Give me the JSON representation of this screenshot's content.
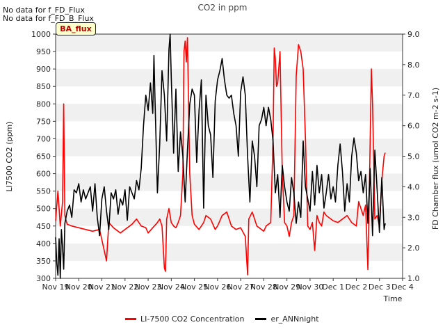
{
  "chart_data": {
    "type": "line",
    "title": "CO2 in ppm",
    "xlabel": "Time",
    "ylabel_left": "LI7500 CO2 (ppm)",
    "ylabel_right": "FD Chamber flux (umol CO2 m-2 s-1)",
    "ylim_left": [
      300,
      1000
    ],
    "ylim_right": [
      1.0,
      9.0
    ],
    "xlim_days": [
      0,
      15
    ],
    "x_tick_labels": [
      "Nov 19",
      "Nov 20",
      "Nov 21",
      "Nov 22",
      "Nov 23",
      "Nov 24",
      "Nov 25",
      "Nov 26",
      "Nov 27",
      "Nov 28",
      "Nov 29",
      "Nov 30",
      "Dec 1",
      "Dec 2",
      "Dec 3",
      "Dec 4"
    ],
    "y_left_ticks": [
      300,
      350,
      400,
      450,
      500,
      550,
      600,
      650,
      700,
      750,
      800,
      850,
      900,
      950,
      1000
    ],
    "y_right_ticks": [
      "1.0",
      "2.0",
      "3.0",
      "4.0",
      "5.0",
      "6.0",
      "7.0",
      "8.0",
      "9.0"
    ],
    "grid": "horizontal bands",
    "legend_position": "bottom",
    "series": [
      {
        "name": "LI-7500 CO2 Concentration",
        "axis": "left",
        "color": "#ff0000",
        "points": [
          [
            0.0,
            465
          ],
          [
            0.1,
            550
          ],
          [
            0.2,
            450
          ],
          [
            0.3,
            520
          ],
          [
            0.35,
            800
          ],
          [
            0.4,
            480
          ],
          [
            0.5,
            455
          ],
          [
            0.7,
            450
          ],
          [
            1.0,
            445
          ],
          [
            1.3,
            440
          ],
          [
            1.6,
            435
          ],
          [
            1.9,
            440
          ],
          [
            2.1,
            380
          ],
          [
            2.2,
            350
          ],
          [
            2.3,
            460
          ],
          [
            2.5,
            445
          ],
          [
            2.8,
            430
          ],
          [
            3.0,
            440
          ],
          [
            3.3,
            455
          ],
          [
            3.5,
            470
          ],
          [
            3.7,
            450
          ],
          [
            3.9,
            445
          ],
          [
            4.0,
            430
          ],
          [
            4.2,
            445
          ],
          [
            4.4,
            460
          ],
          [
            4.5,
            470
          ],
          [
            4.6,
            450
          ],
          [
            4.7,
            330
          ],
          [
            4.75,
            320
          ],
          [
            4.8,
            470
          ],
          [
            4.9,
            500
          ],
          [
            5.0,
            460
          ],
          [
            5.1,
            450
          ],
          [
            5.2,
            445
          ],
          [
            5.3,
            460
          ],
          [
            5.4,
            480
          ],
          [
            5.5,
            600
          ],
          [
            5.55,
            950
          ],
          [
            5.6,
            980
          ],
          [
            5.65,
            920
          ],
          [
            5.7,
            990
          ],
          [
            5.8,
            600
          ],
          [
            5.9,
            480
          ],
          [
            6.0,
            455
          ],
          [
            6.2,
            440
          ],
          [
            6.4,
            460
          ],
          [
            6.5,
            480
          ],
          [
            6.7,
            470
          ],
          [
            6.9,
            440
          ],
          [
            7.0,
            450
          ],
          [
            7.2,
            480
          ],
          [
            7.4,
            490
          ],
          [
            7.6,
            450
          ],
          [
            7.8,
            440
          ],
          [
            8.0,
            445
          ],
          [
            8.2,
            420
          ],
          [
            8.3,
            310
          ],
          [
            8.35,
            470
          ],
          [
            8.5,
            490
          ],
          [
            8.7,
            450
          ],
          [
            8.9,
            440
          ],
          [
            9.0,
            435
          ],
          [
            9.1,
            450
          ],
          [
            9.3,
            460
          ],
          [
            9.4,
            700
          ],
          [
            9.45,
            960
          ],
          [
            9.5,
            930
          ],
          [
            9.55,
            850
          ],
          [
            9.6,
            860
          ],
          [
            9.7,
            950
          ],
          [
            9.8,
            600
          ],
          [
            9.9,
            460
          ],
          [
            10.0,
            450
          ],
          [
            10.1,
            420
          ],
          [
            10.2,
            460
          ],
          [
            10.3,
            480
          ],
          [
            10.4,
            880
          ],
          [
            10.5,
            970
          ],
          [
            10.55,
            960
          ],
          [
            10.6,
            950
          ],
          [
            10.7,
            900
          ],
          [
            10.8,
            700
          ],
          [
            10.9,
            450
          ],
          [
            11.0,
            440
          ],
          [
            11.1,
            460
          ],
          [
            11.2,
            380
          ],
          [
            11.3,
            480
          ],
          [
            11.4,
            460
          ],
          [
            11.5,
            450
          ],
          [
            11.6,
            490
          ],
          [
            11.7,
            480
          ],
          [
            11.9,
            470
          ],
          [
            12.0,
            465
          ],
          [
            12.2,
            460
          ],
          [
            12.4,
            470
          ],
          [
            12.6,
            480
          ],
          [
            12.8,
            460
          ],
          [
            13.0,
            450
          ],
          [
            13.1,
            520
          ],
          [
            13.2,
            500
          ],
          [
            13.3,
            480
          ],
          [
            13.4,
            510
          ],
          [
            13.5,
            325
          ],
          [
            13.55,
            500
          ],
          [
            13.6,
            700
          ],
          [
            13.65,
            900
          ],
          [
            13.7,
            800
          ],
          [
            13.8,
            470
          ],
          [
            13.9,
            480
          ],
          [
            14.0,
            450
          ],
          [
            14.1,
            580
          ],
          [
            14.2,
            650
          ],
          [
            14.25,
            660
          ]
        ]
      },
      {
        "name": "er_ANNnight",
        "axis": "right",
        "color": "#000000",
        "points": [
          [
            0.0,
            2.35
          ],
          [
            0.05,
            1.5
          ],
          [
            0.1,
            1.1
          ],
          [
            0.15,
            2.3
          ],
          [
            0.2,
            1.0
          ],
          [
            0.25,
            2.6
          ],
          [
            0.3,
            2.0
          ],
          [
            0.35,
            1.3
          ],
          [
            0.4,
            2.8
          ],
          [
            0.5,
            3.2
          ],
          [
            0.6,
            3.4
          ],
          [
            0.7,
            3.0
          ],
          [
            0.8,
            3.9
          ],
          [
            0.9,
            3.8
          ],
          [
            1.0,
            4.1
          ],
          [
            1.1,
            3.5
          ],
          [
            1.2,
            3.9
          ],
          [
            1.3,
            3.6
          ],
          [
            1.4,
            3.8
          ],
          [
            1.5,
            4.0
          ],
          [
            1.6,
            3.2
          ],
          [
            1.7,
            4.1
          ],
          [
            1.8,
            3.0
          ],
          [
            1.9,
            2.4
          ],
          [
            2.0,
            3.6
          ],
          [
            2.1,
            4.0
          ],
          [
            2.2,
            3.2
          ],
          [
            2.3,
            2.6
          ],
          [
            2.4,
            3.8
          ],
          [
            2.5,
            3.6
          ],
          [
            2.6,
            3.9
          ],
          [
            2.7,
            3.1
          ],
          [
            2.8,
            3.6
          ],
          [
            2.9,
            3.4
          ],
          [
            3.0,
            3.9
          ],
          [
            3.1,
            2.9
          ],
          [
            3.2,
            4.0
          ],
          [
            3.3,
            3.8
          ],
          [
            3.4,
            3.6
          ],
          [
            3.5,
            4.2
          ],
          [
            3.6,
            3.9
          ],
          [
            3.7,
            4.6
          ],
          [
            3.8,
            6.0
          ],
          [
            3.9,
            7.0
          ],
          [
            4.0,
            6.5
          ],
          [
            4.1,
            7.4
          ],
          [
            4.2,
            6.4
          ],
          [
            4.25,
            8.3
          ],
          [
            4.3,
            6.8
          ],
          [
            4.4,
            3.8
          ],
          [
            4.5,
            5.4
          ],
          [
            4.6,
            7.8
          ],
          [
            4.7,
            7.0
          ],
          [
            4.8,
            5.5
          ],
          [
            4.9,
            8.5
          ],
          [
            4.95,
            9.0
          ],
          [
            5.0,
            7.6
          ],
          [
            5.1,
            5.1
          ],
          [
            5.2,
            7.2
          ],
          [
            5.3,
            4.5
          ],
          [
            5.4,
            5.8
          ],
          [
            5.5,
            5.0
          ],
          [
            5.6,
            3.5
          ],
          [
            5.7,
            5.2
          ],
          [
            5.8,
            6.7
          ],
          [
            5.9,
            7.2
          ],
          [
            6.0,
            7.0
          ],
          [
            6.1,
            4.8
          ],
          [
            6.2,
            6.5
          ],
          [
            6.3,
            7.5
          ],
          [
            6.4,
            3.3
          ],
          [
            6.5,
            7.0
          ],
          [
            6.6,
            6.0
          ],
          [
            6.7,
            5.7
          ],
          [
            6.8,
            4.3
          ],
          [
            6.9,
            6.8
          ],
          [
            7.0,
            7.5
          ],
          [
            7.1,
            7.8
          ],
          [
            7.2,
            8.2
          ],
          [
            7.3,
            7.5
          ],
          [
            7.4,
            7.0
          ],
          [
            7.5,
            6.9
          ],
          [
            7.6,
            7.0
          ],
          [
            7.7,
            6.4
          ],
          [
            7.8,
            6.0
          ],
          [
            7.9,
            5.0
          ],
          [
            8.0,
            7.1
          ],
          [
            8.1,
            7.6
          ],
          [
            8.2,
            7.0
          ],
          [
            8.3,
            5.0
          ],
          [
            8.4,
            3.5
          ],
          [
            8.5,
            5.5
          ],
          [
            8.6,
            5.0
          ],
          [
            8.7,
            4.0
          ],
          [
            8.8,
            6.0
          ],
          [
            8.9,
            6.2
          ],
          [
            9.0,
            6.6
          ],
          [
            9.1,
            6.0
          ],
          [
            9.2,
            6.6
          ],
          [
            9.3,
            6.2
          ],
          [
            9.4,
            5.5
          ],
          [
            9.5,
            3.8
          ],
          [
            9.6,
            4.4
          ],
          [
            9.7,
            3.0
          ],
          [
            9.8,
            4.7
          ],
          [
            9.9,
            4.0
          ],
          [
            10.0,
            3.5
          ],
          [
            10.1,
            3.2
          ],
          [
            10.2,
            4.3
          ],
          [
            10.3,
            3.8
          ],
          [
            10.4,
            2.8
          ],
          [
            10.5,
            3.5
          ],
          [
            10.6,
            3.0
          ],
          [
            10.7,
            5.5
          ],
          [
            10.8,
            4.0
          ],
          [
            10.9,
            3.6
          ],
          [
            11.0,
            3.2
          ],
          [
            11.1,
            4.5
          ],
          [
            11.2,
            3.4
          ],
          [
            11.3,
            4.7
          ],
          [
            11.4,
            3.8
          ],
          [
            11.5,
            4.4
          ],
          [
            11.6,
            3.3
          ],
          [
            11.7,
            3.8
          ],
          [
            11.8,
            4.4
          ],
          [
            11.9,
            3.6
          ],
          [
            12.0,
            4.0
          ],
          [
            12.1,
            3.5
          ],
          [
            12.2,
            4.7
          ],
          [
            12.3,
            5.4
          ],
          [
            12.4,
            4.5
          ],
          [
            12.5,
            3.2
          ],
          [
            12.6,
            4.1
          ],
          [
            12.7,
            3.5
          ],
          [
            12.8,
            5.0
          ],
          [
            12.9,
            5.6
          ],
          [
            13.0,
            5.1
          ],
          [
            13.1,
            4.2
          ],
          [
            13.2,
            4.5
          ],
          [
            13.3,
            3.8
          ],
          [
            13.4,
            4.4
          ],
          [
            13.5,
            2.8
          ],
          [
            13.6,
            4.6
          ],
          [
            13.7,
            2.4
          ],
          [
            13.8,
            5.2
          ],
          [
            13.9,
            3.9
          ],
          [
            14.0,
            2.5
          ],
          [
            14.1,
            4.3
          ],
          [
            14.2,
            2.6
          ],
          [
            14.25,
            2.8
          ]
        ]
      }
    ]
  },
  "no_data_lines": [
    "No data for f_FD_Flux",
    "No data for f_FD_B_Flux"
  ],
  "badge_label": "BA_flux",
  "legend_items": [
    "LI-7500 CO2 Concentration",
    "er_ANNnight"
  ]
}
